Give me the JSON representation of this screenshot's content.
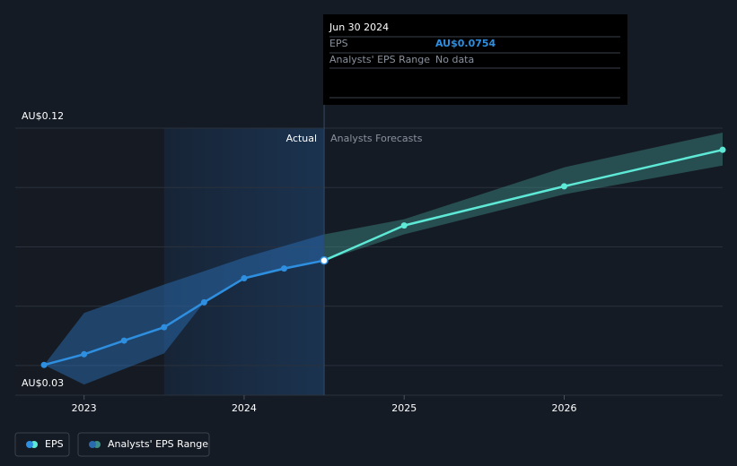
{
  "chart_data": {
    "type": "line",
    "xlim": [
      2022.57,
      2026.99
    ],
    "xticks": [
      2023,
      2024,
      2025,
      2026
    ],
    "ylim": [
      0.03,
      0.12
    ],
    "yticks": [
      {
        "value": 0.03,
        "label": "AU$0.03"
      },
      {
        "value": 0.12,
        "label": "AU$0.12"
      }
    ],
    "ygrid": [
      0.04,
      0.06,
      0.08,
      0.1,
      0.12
    ],
    "grid": true,
    "divider_x": 2024.5,
    "actual_label": "Actual",
    "forecast_label": "Analysts Forecasts",
    "series": [
      {
        "name": "EPS",
        "color": "#2e8fe0",
        "forecast_color": "#5ee8d6",
        "x": [
          2022.75,
          2023,
          2023.25,
          2023.5,
          2023.75,
          2024,
          2024.25,
          2024.5,
          2025,
          2026,
          2026.99
        ],
        "values": [
          0.0402,
          0.0438,
          0.0484,
          0.0529,
          0.0613,
          0.0694,
          0.0727,
          0.0754,
          0.0872,
          0.1004,
          0.1127
        ],
        "actual_count": 8
      },
      {
        "name": "Analysts' EPS Range",
        "color": "#2a6bb0",
        "forecast_color": "#3d8f85",
        "x": [
          2022.75,
          2023,
          2023.5,
          2023.75,
          2024,
          2024.5,
          2025,
          2026,
          2026.99
        ],
        "high": [
          0.0402,
          0.0577,
          0.0673,
          0.0718,
          0.0764,
          0.0842,
          0.0893,
          0.1068,
          0.1185
        ],
        "low": [
          0.0402,
          0.0336,
          0.0441,
          0.0613,
          0.069,
          0.0754,
          0.0842,
          0.0977,
          0.1074
        ],
        "actual_count": 6
      }
    ],
    "tooltip": {
      "title": "Jun 30 2024",
      "rows": [
        {
          "label": "EPS",
          "value": "AU$0.0754"
        },
        {
          "label": "Analysts' EPS Range",
          "value": "No data"
        }
      ]
    }
  }
}
